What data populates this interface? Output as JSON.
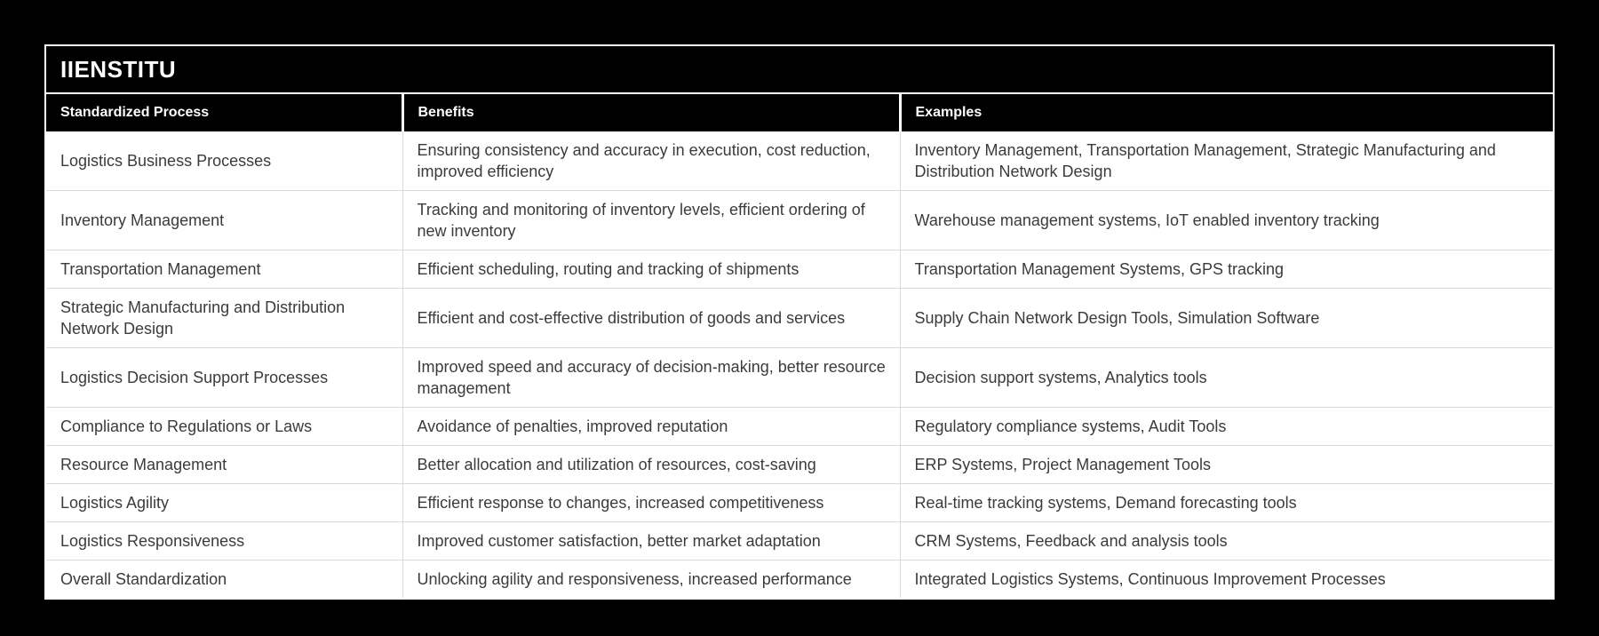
{
  "brand": {
    "title": "IIENSTITU"
  },
  "colors": {
    "page_background": "#000000",
    "frame_border": "#ffffff",
    "header_background": "#000000",
    "header_text": "#ffffff",
    "row_background": "#ffffff",
    "body_text": "#3b3b3b",
    "row_divider": "#d9d9d9"
  },
  "table": {
    "columns": [
      {
        "key": "process",
        "label": "Standardized Process"
      },
      {
        "key": "benefits",
        "label": "Benefits"
      },
      {
        "key": "examples",
        "label": "Examples"
      }
    ],
    "rows": [
      {
        "process": "Logistics Business Processes",
        "benefits": "Ensuring consistency and accuracy in execution, cost reduction, improved efficiency",
        "examples": "Inventory Management, Transportation Management, Strategic Manufacturing and Distribution Network Design"
      },
      {
        "process": "Inventory Management",
        "benefits": "Tracking and monitoring of inventory levels, efficient ordering of new inventory",
        "examples": "Warehouse management systems, IoT enabled inventory tracking"
      },
      {
        "process": "Transportation Management",
        "benefits": "Efficient scheduling, routing and tracking of shipments",
        "examples": "Transportation Management Systems, GPS tracking"
      },
      {
        "process": "Strategic Manufacturing and Distribution Network Design",
        "benefits": "Efficient and cost-effective distribution of goods and services",
        "examples": "Supply Chain Network Design Tools, Simulation Software"
      },
      {
        "process": "Logistics Decision Support Processes",
        "benefits": "Improved speed and accuracy of decision-making, better resource management",
        "examples": "Decision support systems, Analytics tools"
      },
      {
        "process": "Compliance to Regulations or Laws",
        "benefits": "Avoidance of penalties, improved reputation",
        "examples": "Regulatory compliance systems, Audit Tools"
      },
      {
        "process": "Resource Management",
        "benefits": "Better allocation and utilization of resources, cost-saving",
        "examples": "ERP Systems, Project Management Tools"
      },
      {
        "process": "Logistics Agility",
        "benefits": "Efficient response to changes, increased competitiveness",
        "examples": "Real-time tracking systems, Demand forecasting tools"
      },
      {
        "process": "Logistics Responsiveness",
        "benefits": "Improved customer satisfaction, better market adaptation",
        "examples": "CRM Systems, Feedback and analysis tools"
      },
      {
        "process": "Overall Standardization",
        "benefits": "Unlocking agility and responsiveness, increased performance",
        "examples": "Integrated Logistics Systems, Continuous Improvement Processes"
      }
    ]
  }
}
